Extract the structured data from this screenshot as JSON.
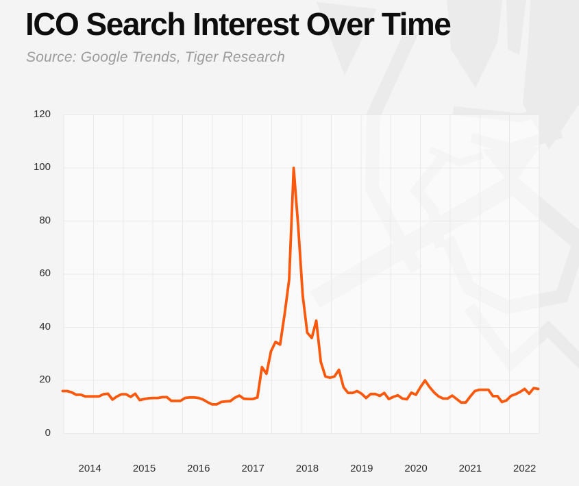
{
  "page": {
    "title": "ICO Search Interest Over Time",
    "subtitle": "Source: Google Trends, Tiger Research"
  },
  "colors": {
    "background": "#f4f4f4",
    "plot_background": "#f8f8f8",
    "line": "#fa590d",
    "grid": "#e9e9e9",
    "watermark": "#ebebeb",
    "title_text": "#0d0d0d",
    "subtitle_text": "#9c9c9c",
    "tick_text": "#2e2e2e"
  },
  "watermark": {
    "name": "tiger-research-logo"
  },
  "chart_data": {
    "type": "line",
    "title": "ICO Search Interest Over Time",
    "source": "Source: Google Trends, Tiger Research",
    "xlabel": "",
    "ylabel": "",
    "x_tick_labels": [
      "2014",
      "2015",
      "2016",
      "2017",
      "2018",
      "2019",
      "2020",
      "2021",
      "2022"
    ],
    "y_ticks": [
      0,
      20,
      40,
      60,
      80,
      100,
      120
    ],
    "ylim": [
      0,
      120
    ],
    "grid": true,
    "legend": false,
    "sampling": "monthly, mid-2013 through early 2022 (read from plot)",
    "peak_value": 100,
    "peak_time": "late 2017",
    "series": [
      {
        "name": "ICO search interest",
        "values": [
          16,
          16,
          15.5,
          14.6,
          14.6,
          14,
          14,
          14,
          14,
          14.8,
          15,
          12.8,
          14,
          14.8,
          14.8,
          13.8,
          15,
          12.6,
          13,
          13.3,
          13.4,
          13.4,
          13.7,
          13.7,
          12.3,
          12.3,
          12.3,
          13.4,
          13.6,
          13.6,
          13.4,
          12.8,
          11.8,
          11,
          11,
          11.9,
          12.1,
          12.2,
          13.5,
          14.3,
          13.1,
          13,
          13,
          13.6,
          25,
          22.5,
          31,
          34.5,
          33.5,
          45,
          58,
          100,
          78,
          52,
          38,
          36,
          42.5,
          27,
          21.5,
          21,
          21.5,
          24,
          17.5,
          15.3,
          15.3,
          16,
          15,
          13.4,
          14.9,
          14.9,
          14.2,
          15.3,
          13,
          13.8,
          14.4,
          13.2,
          12.9,
          15.4,
          14.6,
          17.5,
          20,
          17.5,
          15.5,
          14,
          13.2,
          13.2,
          14.3,
          13,
          11.7,
          11.7,
          14,
          16,
          16.5,
          16.5,
          16.5,
          14.1,
          14.1,
          11.9,
          12.5,
          14.2,
          14.8,
          15.7,
          16.8,
          15,
          17.1,
          16.8
        ]
      }
    ]
  }
}
